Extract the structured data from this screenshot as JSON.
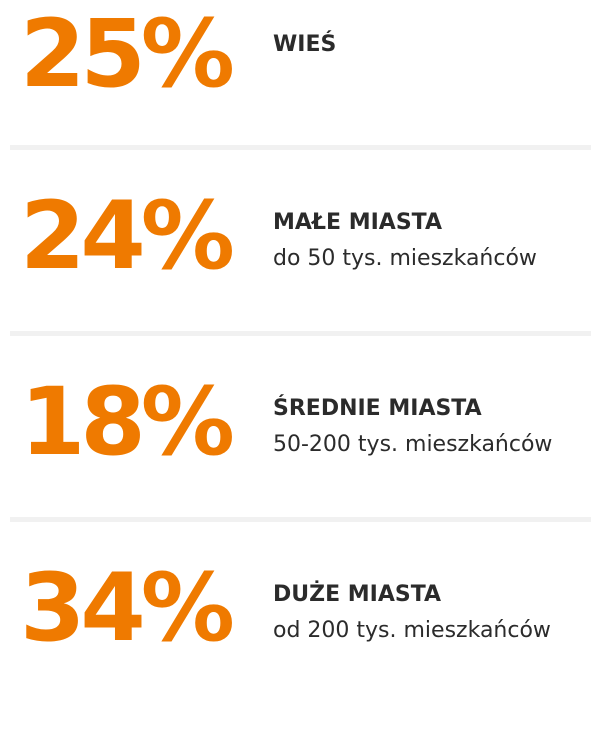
{
  "items": [
    {
      "value": "25%",
      "title": "WIEŚ"
    },
    {
      "value": "24%",
      "title": "MAŁE MIASTA",
      "subtitle": "do 50 tys. mieszkańców"
    },
    {
      "value": "18%",
      "title": "ŚREDNIE MIASTA",
      "subtitle": "50-200 tys. mieszkańców"
    },
    {
      "value": "34%",
      "title": "DUŻE MIASTA",
      "subtitle": "od 200 tys. mieszkańców"
    }
  ]
}
